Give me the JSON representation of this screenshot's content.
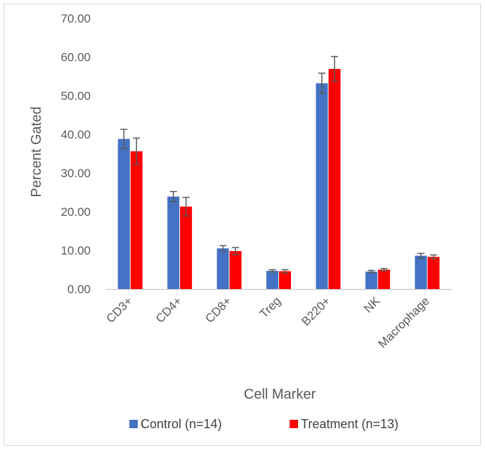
{
  "chart_data": {
    "type": "bar",
    "title": "",
    "xlabel": "Cell Marker",
    "ylabel": "Percent Gated",
    "ylim": [
      0,
      70
    ],
    "yticks": [
      "0.00",
      "10.00",
      "20.00",
      "30.00",
      "40.00",
      "50.00",
      "60.00",
      "70.00"
    ],
    "categories": [
      "CD3+",
      "CD4+",
      "CD8+",
      "Treg",
      "B220+",
      "NK",
      "Macrophage"
    ],
    "grid": false,
    "legend_position": "bottom",
    "series": [
      {
        "name": "Control (n=14)",
        "color": "#4472c4",
        "values": [
          38.8,
          23.9,
          10.5,
          4.7,
          53.2,
          4.5,
          8.6
        ],
        "errors": [
          2.5,
          1.3,
          0.7,
          0.3,
          2.6,
          0.3,
          0.6
        ]
      },
      {
        "name": "Treatment (n=13)",
        "color": "#ff0000",
        "values": [
          35.6,
          21.3,
          9.8,
          4.6,
          56.9,
          5.0,
          8.3
        ],
        "errors": [
          3.4,
          2.4,
          0.9,
          0.4,
          3.2,
          0.3,
          0.5
        ]
      }
    ]
  }
}
